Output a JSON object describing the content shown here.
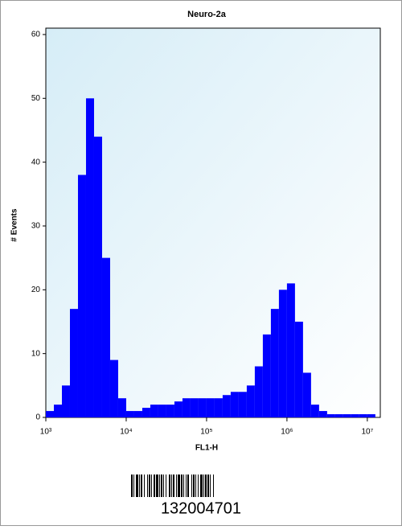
{
  "chart_data": {
    "type": "histogram",
    "title": "Neuro-2a",
    "xlabel": "FL1-H",
    "ylabel": "# Events",
    "xscale": "log",
    "color": "#0000ff",
    "bins": [
      1000,
      1259,
      1585,
      1995,
      2512,
      3162,
      3981,
      5012,
      6310,
      7943,
      10000,
      12589,
      15849,
      19953,
      25119,
      31623,
      39811,
      50119,
      63096,
      79433,
      100000,
      125893,
      158489,
      199526,
      251189,
      316228,
      398107,
      501187,
      630957,
      794328,
      1000000,
      1258925,
      1584893,
      1995262,
      2511886,
      3162278,
      3981072,
      5011872,
      6309573,
      7943282,
      10000000,
      12589254
    ],
    "values": [
      1,
      2,
      5,
      17,
      38,
      50,
      44,
      25,
      9,
      3,
      1,
      1,
      1.5,
      2,
      2,
      2,
      2.5,
      3,
      3,
      3,
      3,
      3,
      3.5,
      4,
      4,
      5,
      8,
      13,
      17,
      20,
      21,
      15,
      7,
      2,
      1,
      0.5,
      0.5,
      0.5,
      0.5,
      0.5,
      0.5
    ],
    "xlim": [
      1000,
      14500000
    ],
    "ylim": [
      0,
      61
    ],
    "xticks": [
      {
        "value": 1000,
        "label": "10³"
      },
      {
        "value": 10000,
        "label": "10⁴"
      },
      {
        "value": 100000,
        "label": "10⁵"
      },
      {
        "value": 1000000,
        "label": "10⁶"
      },
      {
        "value": 10000000,
        "label": "10⁷"
      }
    ],
    "yticks": [
      0,
      10,
      20,
      30,
      40,
      50,
      60
    ]
  },
  "barcode": "132004701"
}
